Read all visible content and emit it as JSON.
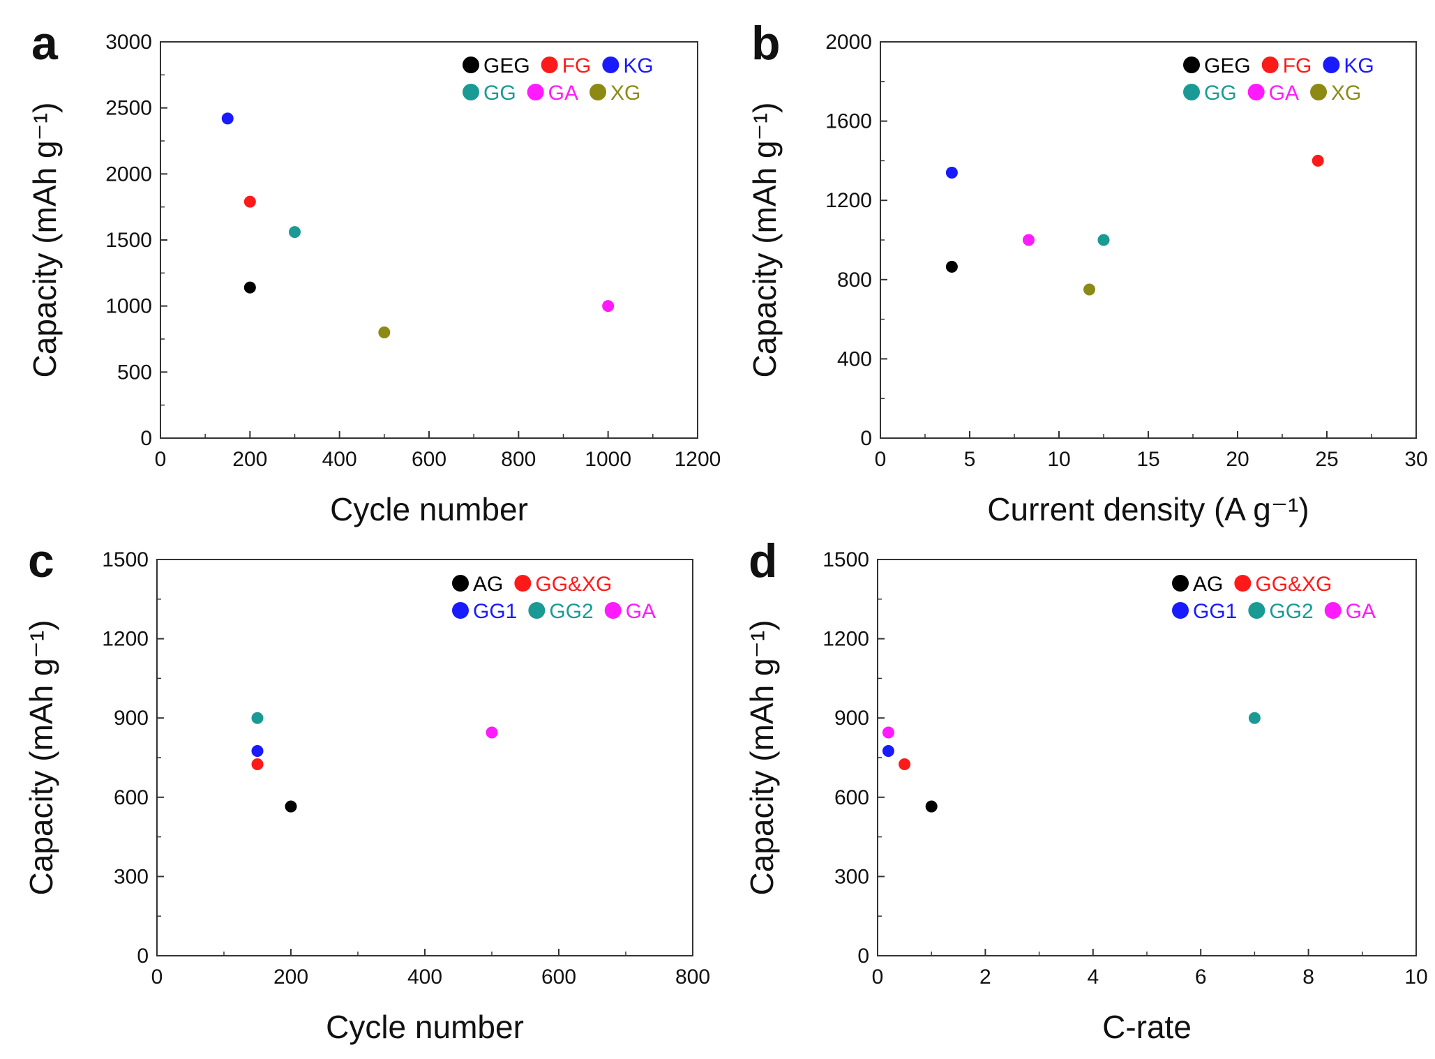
{
  "colors": {
    "black": "#000000",
    "red": "#ff1a1a",
    "blue": "#1a1aff",
    "teal": "#1a9a94",
    "magenta": "#ff1aff",
    "olive": "#8c8a14"
  },
  "chart_data": [
    {
      "type": "scatter",
      "panel_label": "a",
      "xlabel": "Cycle number",
      "ylabel": "Capacity (mAh g⁻¹)",
      "xlim": [
        0,
        1200
      ],
      "ylim": [
        0,
        3000
      ],
      "xticks": [
        "0",
        "200",
        "400",
        "600",
        "800",
        "1000",
        "1200"
      ],
      "yticks": [
        "0",
        "500",
        "1000",
        "1500",
        "2000",
        "2500",
        "3000"
      ],
      "grid": false,
      "legend_position": "top-right",
      "series": [
        {
          "name": "GEG",
          "color": "#000000",
          "x": [
            200
          ],
          "y": [
            1140
          ]
        },
        {
          "name": "FG",
          "color": "#ff1a1a",
          "x": [
            200
          ],
          "y": [
            1790
          ]
        },
        {
          "name": "KG",
          "color": "#1a1aff",
          "x": [
            150
          ],
          "y": [
            2420
          ]
        },
        {
          "name": "GG",
          "color": "#1a9a94",
          "x": [
            300
          ],
          "y": [
            1560
          ]
        },
        {
          "name": "GA",
          "color": "#ff1aff",
          "x": [
            1000
          ],
          "y": [
            1000
          ]
        },
        {
          "name": "XG",
          "color": "#8c8a14",
          "x": [
            500
          ],
          "y": [
            800
          ]
        }
      ]
    },
    {
      "type": "scatter",
      "panel_label": "b",
      "xlabel": "Current density (A g⁻¹)",
      "ylabel": "Capacity (mAh g⁻¹)",
      "xlim": [
        0,
        30
      ],
      "ylim": [
        0,
        2000
      ],
      "xticks": [
        "0",
        "5",
        "10",
        "15",
        "20",
        "25",
        "30"
      ],
      "yticks": [
        "0",
        "400",
        "800",
        "1200",
        "1600",
        "2000"
      ],
      "grid": false,
      "legend_position": "top-right",
      "series": [
        {
          "name": "GEG",
          "color": "#000000",
          "x": [
            4
          ],
          "y": [
            865
          ]
        },
        {
          "name": "FG",
          "color": "#ff1a1a",
          "x": [
            24.5
          ],
          "y": [
            1400
          ]
        },
        {
          "name": "KG",
          "color": "#1a1aff",
          "x": [
            4
          ],
          "y": [
            1340
          ]
        },
        {
          "name": "GG",
          "color": "#1a9a94",
          "x": [
            12.5
          ],
          "y": [
            1000
          ]
        },
        {
          "name": "GA",
          "color": "#ff1aff",
          "x": [
            8.3
          ],
          "y": [
            1000
          ]
        },
        {
          "name": "XG",
          "color": "#8c8a14",
          "x": [
            11.7
          ],
          "y": [
            750
          ]
        }
      ]
    },
    {
      "type": "scatter",
      "panel_label": "c",
      "xlabel": "Cycle number",
      "ylabel": "Capacity (mAh g⁻¹)",
      "xlim": [
        0,
        800
      ],
      "ylim": [
        0,
        1500
      ],
      "xticks": [
        "0",
        "200",
        "400",
        "600",
        "800"
      ],
      "yticks": [
        "0",
        "300",
        "600",
        "900",
        "1200",
        "1500"
      ],
      "grid": false,
      "legend_position": "top-right",
      "series": [
        {
          "name": "AG",
          "color": "#000000",
          "x": [
            200
          ],
          "y": [
            565
          ]
        },
        {
          "name": "GG&XG",
          "color": "#ff1a1a",
          "x": [
            150
          ],
          "y": [
            725
          ]
        },
        {
          "name": "GG1",
          "color": "#1a1aff",
          "x": [
            150
          ],
          "y": [
            775
          ]
        },
        {
          "name": "GG2",
          "color": "#1a9a94",
          "x": [
            150
          ],
          "y": [
            900
          ]
        },
        {
          "name": "GA",
          "color": "#ff1aff",
          "x": [
            500
          ],
          "y": [
            845
          ]
        }
      ]
    },
    {
      "type": "scatter",
      "panel_label": "d",
      "xlabel": "C-rate",
      "ylabel": "Capacity (mAh g⁻¹)",
      "xlim": [
        0,
        10
      ],
      "ylim": [
        0,
        1500
      ],
      "xticks": [
        "0",
        "2",
        "4",
        "6",
        "8",
        "10"
      ],
      "yticks": [
        "0",
        "300",
        "600",
        "900",
        "1200",
        "1500"
      ],
      "grid": false,
      "legend_position": "top-right",
      "series": [
        {
          "name": "AG",
          "color": "#000000",
          "x": [
            1
          ],
          "y": [
            565
          ]
        },
        {
          "name": "GG&XG",
          "color": "#ff1a1a",
          "x": [
            0.5
          ],
          "y": [
            725
          ]
        },
        {
          "name": "GG1",
          "color": "#1a1aff",
          "x": [
            0.2
          ],
          "y": [
            775
          ]
        },
        {
          "name": "GG2",
          "color": "#1a9a94",
          "x": [
            7
          ],
          "y": [
            900
          ]
        },
        {
          "name": "GA",
          "color": "#ff1aff",
          "x": [
            0.2
          ],
          "y": [
            845
          ]
        }
      ]
    }
  ]
}
